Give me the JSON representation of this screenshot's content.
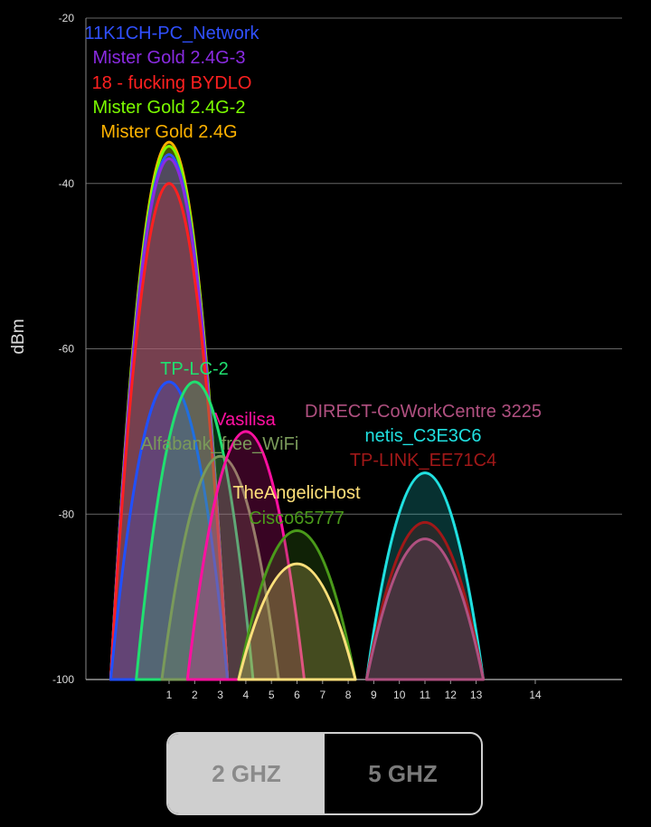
{
  "chart_data": {
    "type": "area",
    "ylabel": "dBm",
    "ylim": [
      -100,
      -20
    ],
    "yticks": [
      -20,
      -40,
      -60,
      -80,
      -100
    ],
    "xticks": [
      1,
      2,
      3,
      4,
      5,
      6,
      7,
      8,
      9,
      10,
      11,
      12,
      13,
      14
    ],
    "grid": true,
    "series": [
      {
        "name": "Mister Gold 2.4G",
        "channel": 1,
        "peak": -35,
        "color": "#FFB300"
      },
      {
        "name": "Mister Gold 2.4G-2",
        "channel": 1,
        "peak": -35.5,
        "color": "#7CFC00"
      },
      {
        "name": "11K1CH-PC_Network",
        "channel": 1,
        "peak": -36.5,
        "color": "#3050FF"
      },
      {
        "name": "Mister Gold 2.4G-3",
        "channel": 1,
        "peak": -37,
        "color": "#8A2BE2"
      },
      {
        "name": "18 - fucking BYDLO",
        "channel": 1,
        "peak": -40,
        "color": "#FF2020"
      },
      {
        "name": "",
        "channel": 1,
        "peak": -64,
        "color": "#2050FF"
      },
      {
        "name": "TP-LC-2",
        "channel": 2,
        "peak": -64,
        "color": "#20E070"
      },
      {
        "name": "Alfabank_free_WiFi",
        "channel": 3,
        "peak": -73,
        "color": "#7A9A5A"
      },
      {
        "name": "Vasilisa",
        "channel": 4,
        "peak": -70,
        "color": "#FF10A0"
      },
      {
        "name": "Cisco65777",
        "channel": 6,
        "peak": -82,
        "color": "#4A9A1A"
      },
      {
        "name": "TheAngelicHost",
        "channel": 6,
        "peak": -86,
        "color": "#FFE07A"
      },
      {
        "name": "netis_C3E3C6",
        "channel": 11,
        "peak": -75,
        "color": "#20E0E0"
      },
      {
        "name": "TP-LINK_EE71C4",
        "channel": 11,
        "peak": -81,
        "color": "#A01818"
      },
      {
        "name": "DIRECT-CoWorkCentre 3225",
        "channel": 11,
        "peak": -83,
        "color": "#B05080"
      }
    ],
    "labels": [
      {
        "text": "11K1CH-PC_Network",
        "color": "#3050FF"
      },
      {
        "text": "Mister Gold 2.4G-3",
        "color": "#8A2BE2"
      },
      {
        "text": "18 - fucking BYDLO",
        "color": "#FF2020"
      },
      {
        "text": "Mister Gold 2.4G-2",
        "color": "#7CFC00"
      },
      {
        "text": "Mister Gold 2.4G",
        "color": "#FFB300"
      },
      {
        "text": "TP-LC-2",
        "color": "#20E070"
      },
      {
        "text": "Vasilisa",
        "color": "#FF10A0"
      },
      {
        "text": "Alfabank_free_WiFi",
        "color": "#7A9A5A"
      },
      {
        "text": "DIRECT-CoWorkCentre 3225",
        "color": "#B05080"
      },
      {
        "text": "netis_C3E3C6",
        "color": "#20E0E0"
      },
      {
        "text": "TP-LINK_EE71C4",
        "color": "#A01818"
      },
      {
        "text": "TheAngelicHost",
        "color": "#FFE07A"
      },
      {
        "text": "Cisco65777",
        "color": "#4A9A1A"
      }
    ]
  },
  "band_toggle": {
    "ghz2_label": "2 GHZ",
    "ghz5_label": "5 GHZ",
    "active": "2 GHZ"
  }
}
